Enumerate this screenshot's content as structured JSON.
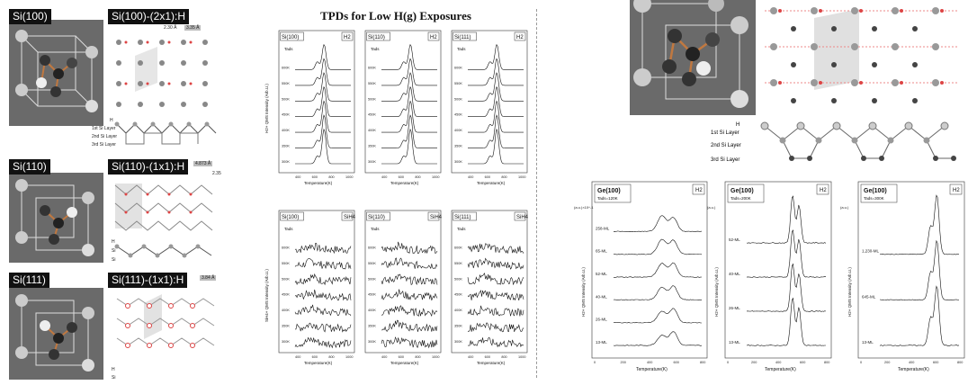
{
  "left": {
    "rows": [
      {
        "cube": "Si(100)",
        "title": "Si(100)-(2x1):H",
        "tags": [
          "2.30 Å",
          "3.35 Å"
        ],
        "layers": [
          "H",
          "1st Si Layer",
          "2nd Si Layer",
          "3rd Si Layer"
        ]
      },
      {
        "cube": "Si(110)",
        "title": "Si(110)-(1x1):H",
        "tags": [
          "4.873 Å",
          "2.35"
        ],
        "layers": [
          "H",
          "Si",
          "Si"
        ]
      },
      {
        "cube": "Si(111)",
        "title": "Si(111)-(1x1):H",
        "tags": [
          "3.84 Å"
        ],
        "layers": [
          "H",
          "Si"
        ]
      }
    ]
  },
  "tpd": {
    "title": "TPDs for Low H(g) Exposures",
    "top_panels": [
      {
        "label": "Si(100)",
        "species": "H2"
      },
      {
        "label": "Si(110)",
        "species": "H2"
      },
      {
        "label": "Si(111)",
        "species": "H2"
      }
    ],
    "bottom_panels": [
      {
        "label": "Si(100)",
        "species": "SiH4"
      },
      {
        "label": "Si(110)",
        "species": "SiH4"
      },
      {
        "label": "Si(111)",
        "species": "SiH4"
      }
    ],
    "top_ylabel": "H2+ QMS Intensity (Arb.U.)",
    "bottom_ylabel": "SiH4+ QMS Intensity (Arb.U.)",
    "xlabel": "Temperature(K)",
    "tads": "Tads",
    "curve_labels": [
      "600K",
      "550K",
      "500K",
      "450K",
      "400K",
      "350K",
      "300K"
    ],
    "xticks": [
      "400",
      "600",
      "800",
      "1000"
    ]
  },
  "right": {
    "layers": [
      "H",
      "1st Si Layer",
      "2nd Si Layer",
      "3rd Si Layer"
    ],
    "ge_panels": [
      {
        "title": "Ge(100)",
        "tads": "Tads=120K",
        "species": "H2",
        "scale": "(a.u.)×10^-1",
        "curves": [
          "258-ML",
          "65-ML",
          "52-ML",
          "40-ML",
          "26-ML",
          "13-ML"
        ]
      },
      {
        "title": "Ge(100)",
        "tads": "Tads=200K",
        "species": "H2",
        "scale": "(a.u.)",
        "curves": [
          "52-ML",
          "40-ML",
          "26-ML",
          "13-ML"
        ]
      },
      {
        "title": "Ge(100)",
        "tads": "Tads=300K",
        "species": "H2",
        "scale": "(a.u.)",
        "curves": [
          "1,230-ML",
          "645-ML",
          "13-ML"
        ]
      }
    ],
    "ylabel": "H2+ QMS Intensity (Arb.U.)",
    "xlabel": "Temperature(K)",
    "xticks": [
      "0",
      "200",
      "400",
      "600",
      "800"
    ]
  }
}
